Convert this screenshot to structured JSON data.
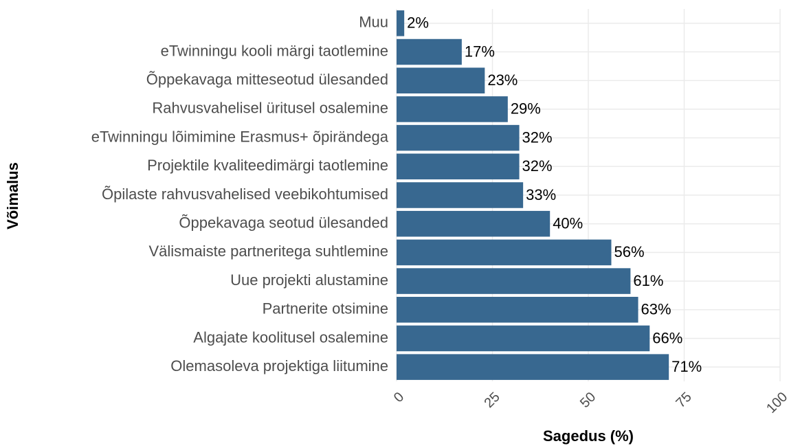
{
  "chart_data": {
    "type": "barh",
    "xlabel": "Sagedus (%)",
    "ylabel": "Võimalus",
    "categories": [
      "Muu",
      "eTwinningu kooli märgi taotlemine",
      "Õppekavaga mitteseotud ülesanded",
      "Rahvusvahelisel üritusel osalemine",
      "eTwinningu lõimimine Erasmus+ õpirändega",
      "Projektile kvaliteedimärgi taotlemine",
      "Õpilaste rahvusvahelised veebikohtumised",
      "Õppekavaga seotud ülesanded",
      "Välismaiste partneritega suhtlemine",
      "Uue projekti alustamine",
      "Partnerite otsimine",
      "Algajate koolitusel osalemine",
      "Olemasoleva projektiga liitumine"
    ],
    "values": [
      2,
      17,
      23,
      29,
      32,
      32,
      33,
      40,
      56,
      61,
      63,
      66,
      71
    ],
    "value_labels": [
      "2%",
      "17%",
      "23%",
      "29%",
      "32%",
      "32%",
      "33%",
      "40%",
      "56%",
      "61%",
      "63%",
      "66%",
      "71%"
    ],
    "color": "#386890",
    "xlim": [
      0,
      100
    ],
    "xticks": [
      0,
      25,
      50,
      75,
      100
    ],
    "grid": true
  }
}
